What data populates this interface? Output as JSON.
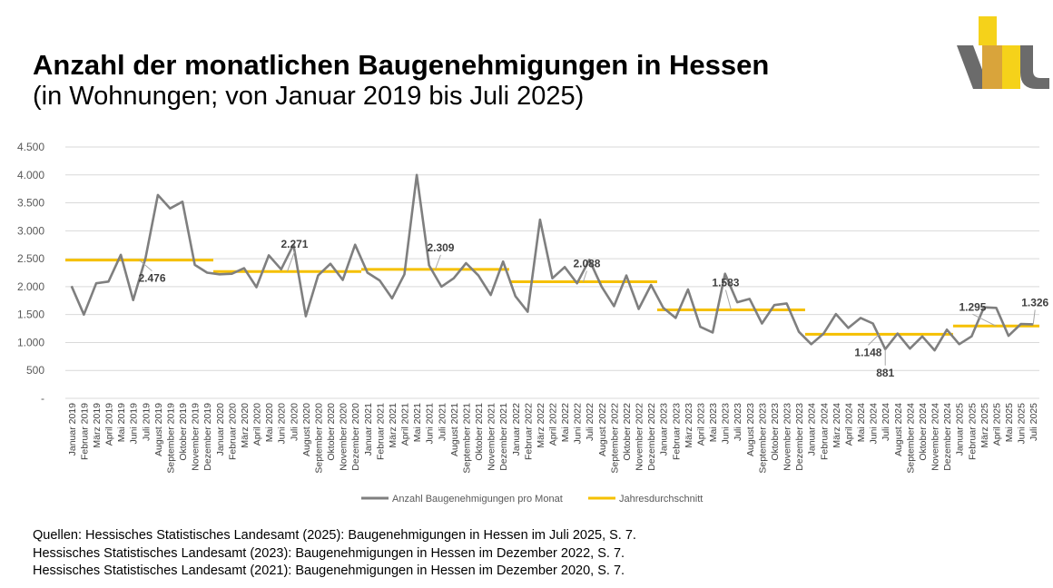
{
  "header": {
    "title": "Anzahl der monatlichen Baugenehmigungen in Hessen",
    "subtitle": "(in Wohnungen; von Januar 2019 bis Juli 2025)"
  },
  "sources": [
    "Quellen: Hessisches Statistisches Landesamt (2025): Baugenehmigungen in Hessen im Juli 2025, S. 7.",
    "Hessisches Statistisches Landesamt (2023): Baugenehmigungen in Hessen im Dezember 2022, S. 7.",
    "Hessisches Statistisches Landesamt (2021): Baugenehmigungen in Hessen im Dezember 2020, S. 7."
  ],
  "colors": {
    "series": "#7f7f7f",
    "average": "#f5c000",
    "grid": "#d9d9d9",
    "logo_dark": "#6b6b6b",
    "logo_gold": "#d9a43b",
    "logo_yellow": "#f5d21a"
  },
  "chart_data": {
    "type": "line",
    "title": "",
    "xlabel": "",
    "ylabel": "",
    "ylim": [
      0,
      4500
    ],
    "yticks": [
      {
        "value": 0,
        "label": "-"
      },
      {
        "value": 500,
        "label": "500"
      },
      {
        "value": 1000,
        "label": "1.000"
      },
      {
        "value": 1500,
        "label": "1.500"
      },
      {
        "value": 2000,
        "label": "2.000"
      },
      {
        "value": 2500,
        "label": "2.500"
      },
      {
        "value": 3000,
        "label": "3.000"
      },
      {
        "value": 3500,
        "label": "3.500"
      },
      {
        "value": 4000,
        "label": "4.000"
      },
      {
        "value": 4500,
        "label": "4.500"
      }
    ],
    "categories": [
      "Januar 2019",
      "Februar 2019",
      "März 2019",
      "April 2019",
      "Mai 2019",
      "Juni 2019",
      "Juli 2019",
      "August 2019",
      "September 2019",
      "Oktober 2019",
      "November 2019",
      "Dezember 2019",
      "Januar 2020",
      "Februar 2020",
      "März 2020",
      "April 2020",
      "Mai 2020",
      "Juni 2020",
      "Juli 2020",
      "August 2020",
      "September 2020",
      "Oktober 2020",
      "November 2020",
      "Dezember 2020",
      "Januar 2021",
      "Februar 2021",
      "März 2021",
      "April 2021",
      "Mai 2021",
      "Juni 2021",
      "Juli 2021",
      "August 2021",
      "September 2021",
      "Oktober 2021",
      "November 2021",
      "Dezember 2021",
      "Januar 2022",
      "Februar 2022",
      "März 2022",
      "April 2022",
      "Mai 2022",
      "Juni 2022",
      "Juli 2022",
      "August 2022",
      "September 2022",
      "Oktober 2022",
      "November 2022",
      "Dezember 2022",
      "Januar 2023",
      "Februar 2023",
      "März 2023",
      "April 2023",
      "Mai 2023",
      "Juni 2023",
      "Juli 2023",
      "August 2023",
      "September 2023",
      "Oktober 2023",
      "November 2023",
      "Dezember 2023",
      "Januar 2024",
      "Februar 2024",
      "März 2024",
      "April 2024",
      "Mai 2024",
      "Juni 2024",
      "Juli 2024",
      "August 2024",
      "September 2024",
      "Oktober 2024",
      "November 2024",
      "Dezember 2024",
      "Januar 2025",
      "Februar 2025",
      "März 2025",
      "April 2025",
      "Mai 2025",
      "Juni 2025",
      "Juli 2025"
    ],
    "series": [
      {
        "name": "Anzahl Baugenehmigungen pro Monat",
        "values": [
          2010,
          1500,
          2060,
          2090,
          2570,
          1760,
          2510,
          3640,
          3400,
          3520,
          2390,
          2250,
          2220,
          2230,
          2330,
          1990,
          2560,
          2310,
          2750,
          1470,
          2200,
          2410,
          2120,
          2750,
          2250,
          2110,
          1790,
          2220,
          4000,
          2380,
          2000,
          2150,
          2420,
          2200,
          1850,
          2450,
          1830,
          1550,
          3200,
          2150,
          2350,
          2060,
          2480,
          2000,
          1650,
          2200,
          1600,
          2030,
          1620,
          1440,
          1950,
          1280,
          1180,
          2230,
          1720,
          1780,
          1340,
          1670,
          1700,
          1190,
          970,
          1160,
          1510,
          1260,
          1440,
          1340,
          881,
          1160,
          890,
          1110,
          860,
          1230,
          970,
          1110,
          1630,
          1620,
          1120,
          1330,
          1326
        ]
      },
      {
        "name": "Jahresdurchschnitt",
        "segments": [
          {
            "year": 2019,
            "start": 0,
            "end": 11,
            "value": 2476,
            "label": "2.476"
          },
          {
            "year": 2020,
            "start": 12,
            "end": 23,
            "value": 2271,
            "label": "2.271"
          },
          {
            "year": 2021,
            "start": 24,
            "end": 35,
            "value": 2309,
            "label": "2.309"
          },
          {
            "year": 2022,
            "start": 36,
            "end": 47,
            "value": 2088,
            "label": "2.088"
          },
          {
            "year": 2023,
            "start": 48,
            "end": 59,
            "value": 1583,
            "label": "1.583"
          },
          {
            "year": 2024,
            "start": 60,
            "end": 71,
            "value": 1148,
            "label": "1.148"
          },
          {
            "year": 2025,
            "start": 72,
            "end": 78,
            "value": 1295,
            "label": "1.295"
          }
        ]
      }
    ],
    "annotations": [
      {
        "index": 66,
        "value": 881,
        "label": "881"
      },
      {
        "index": 78,
        "value": 1326,
        "label": "1.326"
      }
    ],
    "legend": {
      "position": "bottom",
      "items": [
        "Anzahl Baugenehmigungen pro Monat",
        "Jahresdurchschnitt"
      ]
    }
  }
}
